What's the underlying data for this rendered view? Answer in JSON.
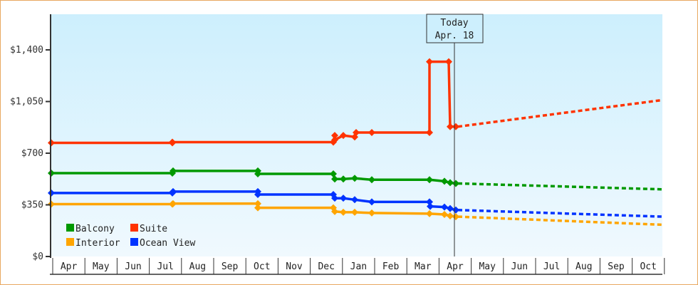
{
  "chart_data": {
    "type": "line",
    "title": "",
    "xlabel": "",
    "ylabel": "",
    "ylim": [
      0,
      1680
    ],
    "y_ticks": [
      "$0",
      "$350",
      "$700",
      "$1,050",
      "$1,400"
    ],
    "x_ticks": [
      "Apr",
      "May",
      "Jun",
      "Jul",
      "Aug",
      "Sep",
      "Oct",
      "Nov",
      "Dec",
      "Jan",
      "Feb",
      "Mar",
      "Apr",
      "May",
      "Jun",
      "Jul",
      "Aug",
      "Sep",
      "Oct"
    ],
    "annotation": {
      "line1": "Today",
      "line2": "Apr. 18"
    },
    "legend": [
      {
        "name": "Balcony",
        "color": "#009900"
      },
      {
        "name": "Suite",
        "color": "#ff3300"
      },
      {
        "name": "Interior",
        "color": "#ffa500"
      },
      {
        "name": "Ocean View",
        "color": "#0033ff"
      }
    ],
    "series": [
      {
        "name": "Suite",
        "color": "#ff3300",
        "historical": [
          [
            "Apr",
            770
          ],
          [
            "Jul",
            770
          ],
          [
            "Jul",
            775
          ],
          [
            "Dec",
            775
          ],
          [
            "Dec",
            820
          ],
          [
            "Dec",
            820
          ],
          [
            "Jan",
            810
          ],
          [
            "Jan",
            810
          ],
          [
            "Jan",
            840
          ],
          [
            "Feb",
            840
          ],
          [
            "Mar",
            840
          ],
          [
            "Mar",
            1320
          ],
          [
            "Apr",
            1320
          ],
          [
            "Apr",
            880
          ]
        ],
        "forecast_start": 880,
        "forecast_end": 1060
      },
      {
        "name": "Balcony",
        "color": "#009900",
        "historical": [
          [
            "Apr",
            565
          ],
          [
            "Jul",
            565
          ],
          [
            "Jul",
            580
          ],
          [
            "Oct",
            580
          ],
          [
            "Oct",
            560
          ],
          [
            "Dec",
            560
          ],
          [
            "Dec",
            525
          ],
          [
            "Jan",
            525
          ],
          [
            "Jan",
            530
          ],
          [
            "Feb",
            520
          ],
          [
            "Mar",
            520
          ],
          [
            "Apr",
            505
          ],
          [
            "Apr",
            495
          ]
        ],
        "forecast_start": 495,
        "forecast_end": 455
      },
      {
        "name": "Ocean View",
        "color": "#0033ff",
        "historical": [
          [
            "Apr",
            430
          ],
          [
            "Jul",
            430
          ],
          [
            "Jul",
            440
          ],
          [
            "Oct",
            440
          ],
          [
            "Oct",
            420
          ],
          [
            "Dec",
            420
          ],
          [
            "Dec",
            395
          ],
          [
            "Jan",
            395
          ],
          [
            "Jan",
            385
          ],
          [
            "Feb",
            370
          ],
          [
            "Mar",
            370
          ],
          [
            "Mar",
            340
          ],
          [
            "Apr",
            330
          ],
          [
            "Apr",
            315
          ]
        ],
        "forecast_start": 315,
        "forecast_end": 270
      },
      {
        "name": "Interior",
        "color": "#ffa500",
        "historical": [
          [
            "Apr",
            355
          ],
          [
            "Jul",
            355
          ],
          [
            "Jul",
            358
          ],
          [
            "Oct",
            358
          ],
          [
            "Oct",
            330
          ],
          [
            "Dec",
            330
          ],
          [
            "Dec",
            305
          ],
          [
            "Jan",
            300
          ],
          [
            "Feb",
            295
          ],
          [
            "Mar",
            290
          ],
          [
            "Apr",
            280
          ],
          [
            "Apr",
            270
          ]
        ],
        "forecast_start": 270,
        "forecast_end": 215
      }
    ]
  }
}
